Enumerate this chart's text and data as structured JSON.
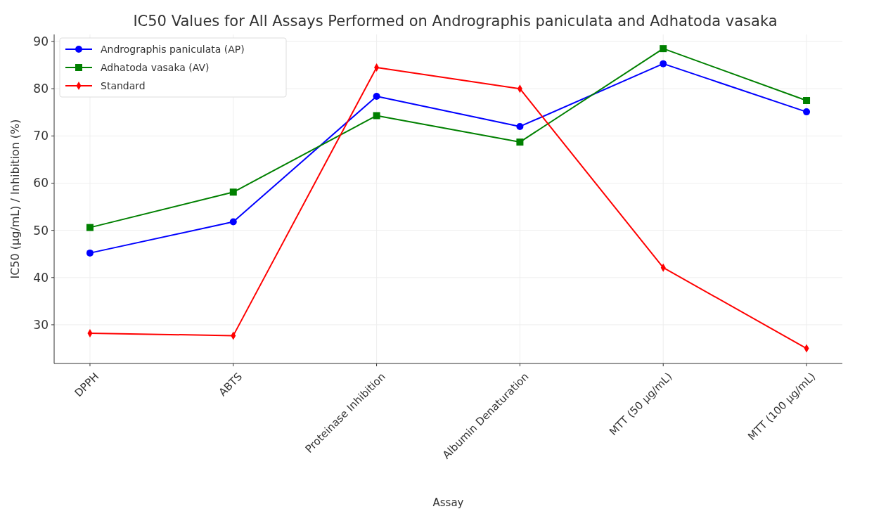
{
  "chart_data": {
    "type": "line",
    "title": "IC50 Values for All Assays Performed on Andrographis paniculata and Adhatoda vasaka",
    "xlabel": "Assay",
    "ylabel": "IC50 (µg/mL) / Inhibition (%)",
    "categories": [
      "DPPH",
      "ABTS",
      "Proteinase Inhibition",
      "Albumin Denaturation",
      "MTT (50 µg/mL)",
      "MTT (100 µg/mL)"
    ],
    "series": [
      {
        "name": "Andrographis paniculata (AP)",
        "color": "#0000ff",
        "marker": "circle",
        "values": [
          45.2,
          51.8,
          78.4,
          72.0,
          85.3,
          75.1
        ]
      },
      {
        "name": "Adhatoda vasaka (AV)",
        "color": "#008000",
        "marker": "square",
        "values": [
          50.6,
          58.1,
          74.3,
          68.7,
          88.5,
          77.5
        ]
      },
      {
        "name": "Standard",
        "color": "#ff0000",
        "marker": "diamond",
        "values": [
          28.2,
          27.7,
          84.5,
          80.0,
          42.1,
          25.0
        ]
      }
    ],
    "ylim": [
      21.8,
      91.5
    ],
    "yticks": [
      30,
      40,
      50,
      60,
      70,
      80,
      90
    ],
    "grid": true,
    "legend": "top left",
    "line_style": "solid"
  }
}
